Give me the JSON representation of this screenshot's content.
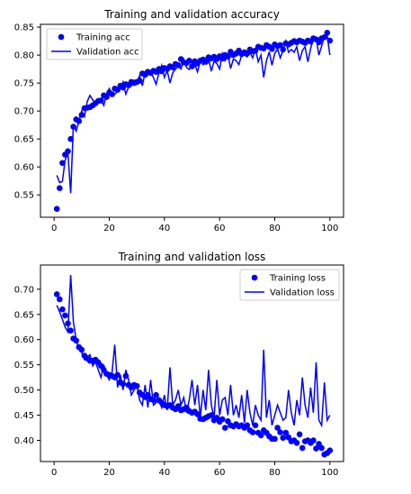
{
  "colors": {
    "series": "#0000ff",
    "axes": "#000000",
    "background": "#ffffff",
    "legend_border": "#cccccc"
  },
  "chart_data": [
    {
      "type": "line",
      "title": "Training and validation accuracy",
      "xlabel": "",
      "ylabel": "",
      "xlim": [
        -4.95,
        104.95
      ],
      "ylim": [
        0.51,
        0.855
      ],
      "xticks": [
        0,
        20,
        40,
        60,
        80,
        100
      ],
      "xtick_labels": [
        "0",
        "20",
        "40",
        "60",
        "80",
        "100"
      ],
      "yticks": [
        0.55,
        0.6,
        0.65,
        0.7,
        0.75,
        0.8,
        0.85
      ],
      "ytick_labels": [
        "0.55",
        "0.60",
        "0.65",
        "0.70",
        "0.75",
        "0.80",
        "0.85"
      ],
      "legend": {
        "position": "upper left",
        "entries": [
          "Training acc",
          "Validation acc"
        ]
      },
      "grid": false,
      "series": [
        {
          "name": "Training acc",
          "style": "markers",
          "x": [
            1,
            2,
            3,
            4,
            5,
            6,
            7,
            8,
            9,
            10,
            11,
            12,
            13,
            14,
            15,
            16,
            17,
            18,
            19,
            20,
            21,
            22,
            23,
            24,
            25,
            26,
            27,
            28,
            29,
            30,
            31,
            32,
            33,
            34,
            35,
            36,
            37,
            38,
            39,
            40,
            41,
            42,
            43,
            44,
            45,
            46,
            47,
            48,
            49,
            50,
            51,
            52,
            53,
            54,
            55,
            56,
            57,
            58,
            59,
            60,
            61,
            62,
            63,
            64,
            65,
            66,
            67,
            68,
            69,
            70,
            71,
            72,
            73,
            74,
            75,
            76,
            77,
            78,
            79,
            80,
            81,
            82,
            83,
            84,
            85,
            86,
            87,
            88,
            89,
            90,
            91,
            92,
            93,
            94,
            95,
            96,
            97,
            98,
            99,
            100
          ],
          "values": [
            0.525,
            0.562,
            0.607,
            0.622,
            0.628,
            0.65,
            0.672,
            0.685,
            0.682,
            0.693,
            0.705,
            0.706,
            0.707,
            0.71,
            0.714,
            0.718,
            0.719,
            0.728,
            0.725,
            0.733,
            0.73,
            0.74,
            0.738,
            0.745,
            0.742,
            0.748,
            0.746,
            0.752,
            0.75,
            0.752,
            0.754,
            0.767,
            0.765,
            0.77,
            0.768,
            0.772,
            0.77,
            0.775,
            0.771,
            0.777,
            0.775,
            0.78,
            0.778,
            0.784,
            0.782,
            0.793,
            0.787,
            0.786,
            0.79,
            0.78,
            0.789,
            0.785,
            0.79,
            0.792,
            0.788,
            0.796,
            0.794,
            0.797,
            0.793,
            0.798,
            0.794,
            0.8,
            0.797,
            0.806,
            0.8,
            0.803,
            0.808,
            0.802,
            0.805,
            0.803,
            0.81,
            0.807,
            0.808,
            0.815,
            0.813,
            0.812,
            0.818,
            0.815,
            0.811,
            0.819,
            0.816,
            0.818,
            0.81,
            0.821,
            0.819,
            0.822,
            0.825,
            0.823,
            0.826,
            0.824,
            0.822,
            0.826,
            0.824,
            0.83,
            0.828,
            0.823,
            0.83,
            0.832,
            0.84,
            0.826
          ]
        },
        {
          "name": "Validation acc",
          "style": "line",
          "x": [
            1,
            2,
            3,
            4,
            5,
            6,
            7,
            8,
            9,
            10,
            11,
            12,
            13,
            14,
            15,
            16,
            17,
            18,
            19,
            20,
            21,
            22,
            23,
            24,
            25,
            26,
            27,
            28,
            29,
            30,
            31,
            32,
            33,
            34,
            35,
            36,
            37,
            38,
            39,
            40,
            41,
            42,
            43,
            44,
            45,
            46,
            47,
            48,
            49,
            50,
            51,
            52,
            53,
            54,
            55,
            56,
            57,
            58,
            59,
            60,
            61,
            62,
            63,
            64,
            65,
            66,
            67,
            68,
            69,
            70,
            71,
            72,
            73,
            74,
            75,
            76,
            77,
            78,
            79,
            80,
            81,
            82,
            83,
            84,
            85,
            86,
            87,
            88,
            89,
            90,
            91,
            92,
            93,
            94,
            95,
            96,
            97,
            98,
            99,
            100
          ],
          "values": [
            0.585,
            0.572,
            0.574,
            0.612,
            0.625,
            0.553,
            0.675,
            0.664,
            0.682,
            0.7,
            0.69,
            0.717,
            0.728,
            0.72,
            0.712,
            0.722,
            0.72,
            0.71,
            0.73,
            0.74,
            0.73,
            0.73,
            0.735,
            0.74,
            0.752,
            0.73,
            0.743,
            0.745,
            0.755,
            0.752,
            0.763,
            0.745,
            0.77,
            0.765,
            0.77,
            0.76,
            0.748,
            0.768,
            0.782,
            0.76,
            0.772,
            0.75,
            0.768,
            0.775,
            0.78,
            0.775,
            0.792,
            0.778,
            0.774,
            0.786,
            0.783,
            0.77,
            0.79,
            0.783,
            0.789,
            0.794,
            0.771,
            0.789,
            0.785,
            0.775,
            0.803,
            0.79,
            0.801,
            0.776,
            0.793,
            0.79,
            0.783,
            0.8,
            0.8,
            0.797,
            0.805,
            0.795,
            0.812,
            0.788,
            0.8,
            0.76,
            0.79,
            0.806,
            0.782,
            0.803,
            0.811,
            0.795,
            0.808,
            0.825,
            0.805,
            0.81,
            0.805,
            0.815,
            0.79,
            0.808,
            0.815,
            0.788,
            0.812,
            0.828,
            0.83,
            0.8,
            0.816,
            0.835,
            0.835,
            0.8
          ]
        }
      ]
    },
    {
      "type": "line",
      "title": "Training and validation loss",
      "xlabel": "",
      "ylabel": "",
      "xlim": [
        -4.95,
        104.95
      ],
      "ylim": [
        0.358,
        0.748
      ],
      "xticks": [
        0,
        20,
        40,
        60,
        80,
        100
      ],
      "xtick_labels": [
        "0",
        "20",
        "40",
        "60",
        "80",
        "100"
      ],
      "yticks": [
        0.4,
        0.45,
        0.5,
        0.55,
        0.6,
        0.65,
        0.7
      ],
      "ytick_labels": [
        "0.40",
        "0.45",
        "0.50",
        "0.55",
        "0.60",
        "0.65",
        "0.70"
      ],
      "legend": {
        "position": "upper right",
        "entries": [
          "Training loss",
          "Validation loss"
        ]
      },
      "grid": false,
      "series": [
        {
          "name": "Training loss",
          "style": "markers",
          "x": [
            1,
            2,
            3,
            4,
            5,
            6,
            7,
            8,
            9,
            10,
            11,
            12,
            13,
            14,
            15,
            16,
            17,
            18,
            19,
            20,
            21,
            22,
            23,
            24,
            25,
            26,
            27,
            28,
            29,
            30,
            31,
            32,
            33,
            34,
            35,
            36,
            37,
            38,
            39,
            40,
            41,
            42,
            43,
            44,
            45,
            46,
            47,
            48,
            49,
            50,
            51,
            52,
            53,
            54,
            55,
            56,
            57,
            58,
            59,
            60,
            61,
            62,
            63,
            64,
            65,
            66,
            67,
            68,
            69,
            70,
            71,
            72,
            73,
            74,
            75,
            76,
            77,
            78,
            79,
            80,
            81,
            82,
            83,
            84,
            85,
            86,
            87,
            88,
            89,
            90,
            91,
            92,
            93,
            94,
            95,
            96,
            97,
            98,
            99,
            100
          ],
          "values": [
            0.69,
            0.68,
            0.66,
            0.648,
            0.632,
            0.618,
            0.602,
            0.598,
            0.585,
            0.58,
            0.568,
            0.563,
            0.558,
            0.558,
            0.56,
            0.555,
            0.548,
            0.54,
            0.532,
            0.53,
            0.528,
            0.525,
            0.53,
            0.515,
            0.512,
            0.528,
            0.51,
            0.505,
            0.51,
            0.508,
            0.495,
            0.49,
            0.486,
            0.49,
            0.482,
            0.48,
            0.49,
            0.48,
            0.475,
            0.47,
            0.468,
            0.47,
            0.465,
            0.462,
            0.468,
            0.46,
            0.462,
            0.465,
            0.458,
            0.455,
            0.457,
            0.452,
            0.443,
            0.442,
            0.445,
            0.448,
            0.45,
            0.44,
            0.445,
            0.437,
            0.442,
            0.425,
            0.438,
            0.43,
            0.428,
            0.432,
            0.428,
            0.43,
            0.425,
            0.43,
            0.42,
            0.416,
            0.43,
            0.415,
            0.41,
            0.42,
            0.415,
            0.408,
            0.403,
            0.403,
            0.425,
            0.416,
            0.405,
            0.415,
            0.406,
            0.398,
            0.4,
            0.395,
            0.412,
            0.385,
            0.398,
            0.4,
            0.395,
            0.4,
            0.384,
            0.393,
            0.385,
            0.372,
            0.375,
            0.38
          ]
        },
        {
          "name": "Validation loss",
          "style": "line",
          "x": [
            1,
            2,
            3,
            4,
            5,
            6,
            7,
            8,
            9,
            10,
            11,
            12,
            13,
            14,
            15,
            16,
            17,
            18,
            19,
            20,
            21,
            22,
            23,
            24,
            25,
            26,
            27,
            28,
            29,
            30,
            31,
            32,
            33,
            34,
            35,
            36,
            37,
            38,
            39,
            40,
            41,
            42,
            43,
            44,
            45,
            46,
            47,
            48,
            49,
            50,
            51,
            52,
            53,
            54,
            55,
            56,
            57,
            58,
            59,
            60,
            61,
            62,
            63,
            64,
            65,
            66,
            67,
            68,
            69,
            70,
            71,
            72,
            73,
            74,
            75,
            76,
            77,
            78,
            79,
            80,
            81,
            82,
            83,
            84,
            85,
            86,
            87,
            88,
            89,
            90,
            91,
            92,
            93,
            94,
            95,
            96,
            97,
            98,
            99,
            100
          ],
          "values": [
            0.668,
            0.655,
            0.64,
            0.625,
            0.615,
            0.728,
            0.635,
            0.6,
            0.58,
            0.575,
            0.56,
            0.565,
            0.57,
            0.548,
            0.556,
            0.54,
            0.525,
            0.55,
            0.53,
            0.52,
            0.535,
            0.59,
            0.505,
            0.53,
            0.5,
            0.54,
            0.52,
            0.49,
            0.5,
            0.51,
            0.48,
            0.47,
            0.51,
            0.465,
            0.52,
            0.47,
            0.475,
            0.48,
            0.465,
            0.49,
            0.46,
            0.545,
            0.47,
            0.48,
            0.5,
            0.47,
            0.485,
            0.455,
            0.48,
            0.52,
            0.47,
            0.51,
            0.445,
            0.5,
            0.46,
            0.54,
            0.47,
            0.445,
            0.52,
            0.45,
            0.48,
            0.485,
            0.45,
            0.51,
            0.45,
            0.47,
            0.445,
            0.49,
            0.435,
            0.5,
            0.455,
            0.43,
            0.47,
            0.45,
            0.44,
            0.58,
            0.445,
            0.48,
            0.43,
            0.45,
            0.47,
            0.455,
            0.44,
            0.445,
            0.5,
            0.455,
            0.43,
            0.48,
            0.45,
            0.525,
            0.47,
            0.445,
            0.505,
            0.455,
            0.555,
            0.44,
            0.43,
            0.515,
            0.44,
            0.45
          ]
        }
      ]
    }
  ]
}
